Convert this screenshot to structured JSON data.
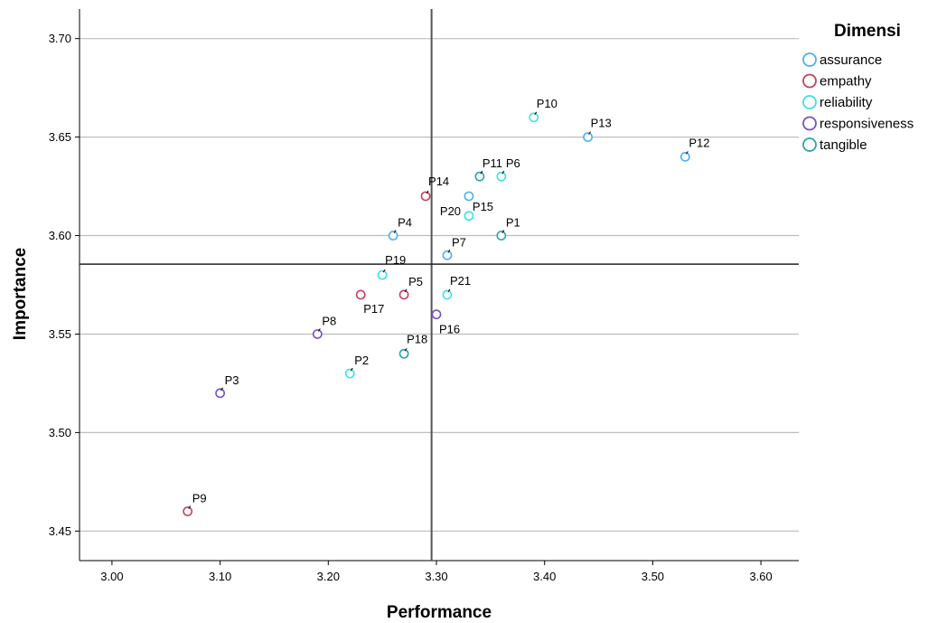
{
  "chart_data": {
    "type": "scatter",
    "title": "",
    "xlabel": "Performance",
    "ylabel": "Importance",
    "xlim": [
      2.97,
      3.635
    ],
    "ylim": [
      3.435,
      3.715
    ],
    "x_ticks": [
      "3.00",
      "3.10",
      "3.20",
      "3.30",
      "3.40",
      "3.50",
      "3.60"
    ],
    "y_ticks": [
      "3.45",
      "3.50",
      "3.55",
      "3.60",
      "3.65",
      "3.70"
    ],
    "grid": "horizontal",
    "reference_lines": {
      "x": 3.2955,
      "y": 3.5855
    },
    "legend": {
      "title": "Dimensi",
      "position": "right",
      "entries": [
        {
          "name": "assurance",
          "color": "#4ab1f0"
        },
        {
          "name": "empathy",
          "color": "#c3415d"
        },
        {
          "name": "reliability",
          "color": "#3ee0e6"
        },
        {
          "name": "responsiveness",
          "color": "#7b4fc0"
        },
        {
          "name": "tangible",
          "color": "#2aa5a8"
        }
      ]
    },
    "points": [
      {
        "label": "P1",
        "x": 3.36,
        "y": 3.6,
        "group": "tangible"
      },
      {
        "label": "P2",
        "x": 3.22,
        "y": 3.53,
        "group": "reliability"
      },
      {
        "label": "P3",
        "x": 3.1,
        "y": 3.52,
        "group": "responsiveness"
      },
      {
        "label": "P4",
        "x": 3.26,
        "y": 3.6,
        "group": "assurance"
      },
      {
        "label": "P5",
        "x": 3.27,
        "y": 3.57,
        "group": "empathy"
      },
      {
        "label": "P6",
        "x": 3.36,
        "y": 3.63,
        "group": "reliability"
      },
      {
        "label": "P7",
        "x": 3.31,
        "y": 3.59,
        "group": "assurance"
      },
      {
        "label": "P8",
        "x": 3.19,
        "y": 3.55,
        "group": "responsiveness"
      },
      {
        "label": "P9",
        "x": 3.07,
        "y": 3.46,
        "group": "empathy"
      },
      {
        "label": "P10",
        "x": 3.39,
        "y": 3.66,
        "group": "reliability"
      },
      {
        "label": "P11",
        "x": 3.34,
        "y": 3.63,
        "group": "tangible"
      },
      {
        "label": "P12",
        "x": 3.53,
        "y": 3.64,
        "group": "assurance"
      },
      {
        "label": "P13",
        "x": 3.44,
        "y": 3.65,
        "group": "assurance"
      },
      {
        "label": "P14",
        "x": 3.29,
        "y": 3.62,
        "group": "empathy"
      },
      {
        "label": "P15",
        "x": 3.33,
        "y": 3.62,
        "group": "assurance"
      },
      {
        "label": "P16",
        "x": 3.3,
        "y": 3.56,
        "group": "responsiveness"
      },
      {
        "label": "P17",
        "x": 3.23,
        "y": 3.57,
        "group": "empathy"
      },
      {
        "label": "P18",
        "x": 3.27,
        "y": 3.54,
        "group": "tangible"
      },
      {
        "label": "P19",
        "x": 3.25,
        "y": 3.58,
        "group": "reliability"
      },
      {
        "label": "P20",
        "x": 3.33,
        "y": 3.61,
        "group": "reliability"
      },
      {
        "label": "P21",
        "x": 3.31,
        "y": 3.57,
        "group": "reliability"
      }
    ]
  }
}
